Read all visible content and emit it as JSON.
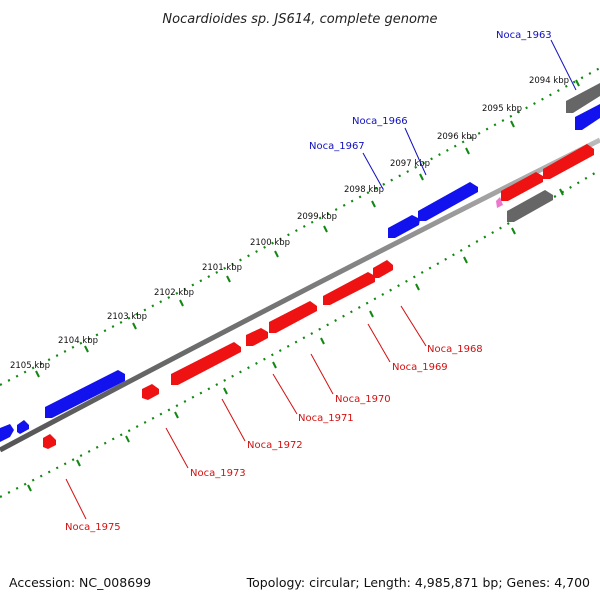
{
  "title": "Nocardioides sp. JS614, complete genome",
  "footer": {
    "accession": "Accession: NC_008699",
    "info": "Topology: circular; Length: 4,985,871 bp; Genes: 4,700"
  },
  "colors": {
    "forward_gene": "#1212ee",
    "reverse_gene": "#ee1212",
    "other_feature": "#666666",
    "misc_feature": "#ee77cc",
    "backbone": "#888888",
    "ticks": "#118811",
    "label_blue": "#1010c0",
    "label_red": "#d41010"
  },
  "scale_labels": [
    "2094 kbp",
    "2095 kbp",
    "2096 kbp",
    "2097 kbp",
    "2098 kbp",
    "2099 kbp",
    "2100 kbp",
    "2101 kbp",
    "2102 kbp",
    "2103 kbp",
    "2104 kbp",
    "2105 kbp"
  ],
  "gene_labels": {
    "blue": [
      "Noca_1963",
      "Noca_1966",
      "Noca_1967"
    ],
    "red": [
      "Noca_1968",
      "Noca_1969",
      "Noca_1970",
      "Noca_1971",
      "Noca_1972",
      "Noca_1973",
      "Noca_1975"
    ]
  }
}
